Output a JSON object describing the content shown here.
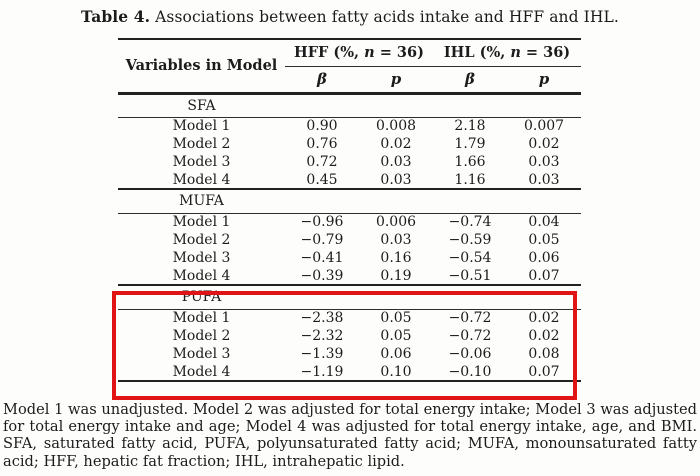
{
  "title": {
    "bold": "Table 4.",
    "rest": " Associations between fatty acids intake and HFF and IHL."
  },
  "highlight": {
    "color": "#e01414",
    "note": "red-box-around-PUFA-section"
  },
  "table": {
    "variables_header": "Variables in Model",
    "groups": [
      {
        "prefix": "HFF (%, ",
        "n": "n",
        "suffix": " = 36)"
      },
      {
        "prefix": "IHL (%, ",
        "n": "n",
        "suffix": " = 36)"
      }
    ],
    "stat_headers": [
      "β",
      "p",
      "β",
      "p"
    ],
    "sections": [
      {
        "name": "SFA",
        "rows": [
          {
            "label": "Model 1",
            "values": [
              "0.90",
              "0.008",
              "2.18",
              "0.007"
            ]
          },
          {
            "label": "Model 2",
            "values": [
              "0.76",
              "0.02",
              "1.79",
              "0.02"
            ]
          },
          {
            "label": "Model 3",
            "values": [
              "0.72",
              "0.03",
              "1.66",
              "0.03"
            ]
          },
          {
            "label": "Model 4",
            "values": [
              "0.45",
              "0.03",
              "1.16",
              "0.03"
            ]
          }
        ]
      },
      {
        "name": "MUFA",
        "rows": [
          {
            "label": "Model 1",
            "values": [
              "−0.96",
              "0.006",
              "−0.74",
              "0.04"
            ]
          },
          {
            "label": "Model 2",
            "values": [
              "−0.79",
              "0.03",
              "−0.59",
              "0.05"
            ]
          },
          {
            "label": "Model 3",
            "values": [
              "−0.41",
              "0.16",
              "−0.54",
              "0.06"
            ]
          },
          {
            "label": "Model 4",
            "values": [
              "−0.39",
              "0.19",
              "−0.51",
              "0.07"
            ]
          }
        ]
      },
      {
        "name": "PUFA",
        "highlighted": true,
        "rows": [
          {
            "label": "Model 1",
            "values": [
              "−2.38",
              "0.05",
              "−0.72",
              "0.02"
            ]
          },
          {
            "label": "Model 2",
            "values": [
              "−2.32",
              "0.05",
              "−0.72",
              "0.02"
            ]
          },
          {
            "label": "Model 3",
            "values": [
              "−1.39",
              "0.06",
              "−0.06",
              "0.08"
            ]
          },
          {
            "label": "Model 4",
            "values": [
              "−1.19",
              "0.10",
              "−0.10",
              "0.07"
            ]
          }
        ]
      }
    ]
  },
  "footnote": "Model 1 was unadjusted. Model 2 was adjusted for total energy intake; Model 3 was adjusted for total energy intake and age; Model 4 was adjusted for total energy intake, age, and BMI. SFA, saturated fatty acid, PUFA, polyunsaturated fatty acid; MUFA, monounsaturated fatty acid; HFF, hepatic fat fraction; IHL, intrahepatic lipid."
}
